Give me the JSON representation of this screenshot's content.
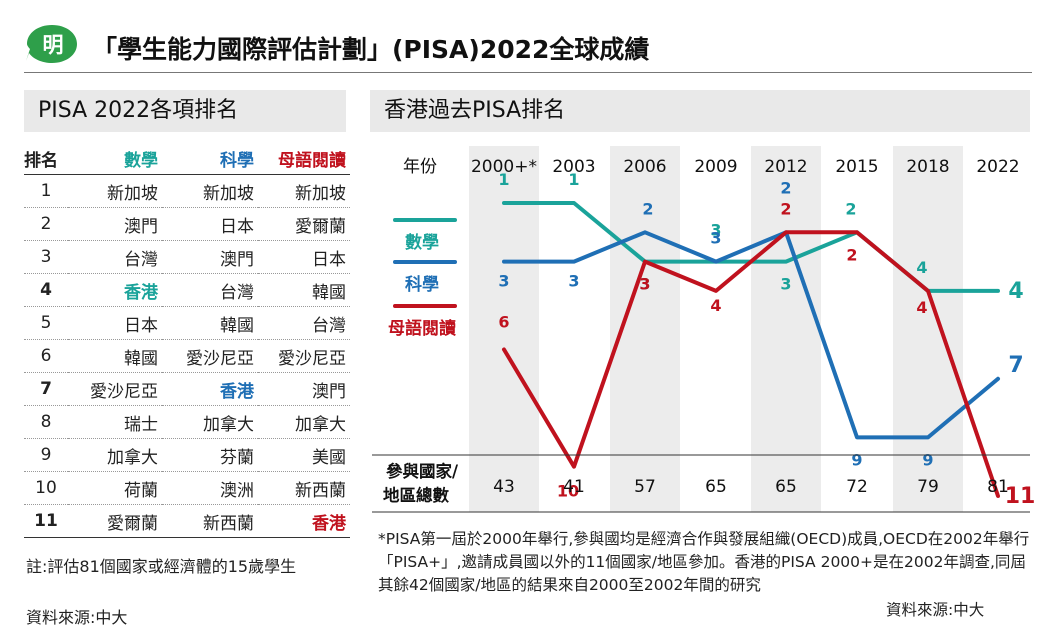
{
  "header": {
    "title": "「學生能力國際評估計劃」(PISA)2022全球成績",
    "logo_text": "明"
  },
  "left_panel": {
    "heading": "PISA 2022各項排名",
    "columns": [
      "排名",
      "數學",
      "科學",
      "母語閱讀"
    ],
    "rows": [
      {
        "rank": "1",
        "math": "新加坡",
        "science": "新加坡",
        "reading": "新加坡"
      },
      {
        "rank": "2",
        "math": "澳門",
        "science": "日本",
        "reading": "愛爾蘭"
      },
      {
        "rank": "3",
        "math": "台灣",
        "science": "澳門",
        "reading": "日本"
      },
      {
        "rank": "4",
        "math": "香港",
        "science": "台灣",
        "reading": "韓國"
      },
      {
        "rank": "5",
        "math": "日本",
        "science": "韓國",
        "reading": "台灣"
      },
      {
        "rank": "6",
        "math": "韓國",
        "science": "愛沙尼亞",
        "reading": "愛沙尼亞"
      },
      {
        "rank": "7",
        "math": "愛沙尼亞",
        "science": "香港",
        "reading": "澳門"
      },
      {
        "rank": "8",
        "math": "瑞士",
        "science": "加拿大",
        "reading": "加拿大"
      },
      {
        "rank": "9",
        "math": "加拿大",
        "science": "芬蘭",
        "reading": "美國"
      },
      {
        "rank": "10",
        "math": "荷蘭",
        "science": "澳洲",
        "reading": "新西蘭"
      },
      {
        "rank": "11",
        "math": "愛爾蘭",
        "science": "新西蘭",
        "reading": "香港"
      }
    ],
    "note": "註:評估81個國家或經濟體的15歲學生",
    "source": "資料來源:中大"
  },
  "right_panel": {
    "heading": "香港過去PISA排名",
    "year_header": "年份",
    "participants_label_1": "參與國家/",
    "participants_label_2": "地區總數",
    "footnote": "*PISA第一屆於2000年舉行,參與國均是經濟合作與發展組織(OECD)成員,OECD在2002年舉行「PISA+」,邀請成員國以外的11個國家/地區參加。香港的PISA 2000+是在2002年調查,同屆其餘42個國家/地區的結果來自2000至2002年間的研究",
    "source": "資料來源:中大"
  },
  "colors": {
    "math": "#1aa39a",
    "science": "#1f6fb5",
    "reading": "#c0121e",
    "band": "#ececec"
  },
  "chart_data": {
    "type": "line",
    "title": "香港過去PISA排名",
    "categories": [
      "2000+*",
      "2003",
      "2006",
      "2009",
      "2012",
      "2015",
      "2018",
      "2022"
    ],
    "participants": [
      "43",
      "41",
      "57",
      "65",
      "65",
      "72",
      "79",
      "81"
    ],
    "y_axis": "rank (inverted, 1 at top)",
    "series": [
      {
        "name": "數學",
        "key": "math",
        "values": [
          1,
          1,
          3,
          3,
          3,
          2,
          4,
          4
        ]
      },
      {
        "name": "科學",
        "key": "science",
        "values": [
          3,
          3,
          2,
          3,
          2,
          9,
          9,
          7
        ]
      },
      {
        "name": "母語閱讀",
        "key": "reading",
        "values": [
          6,
          10,
          3,
          4,
          2,
          2,
          4,
          11
        ]
      }
    ],
    "legend_placement": "left"
  }
}
